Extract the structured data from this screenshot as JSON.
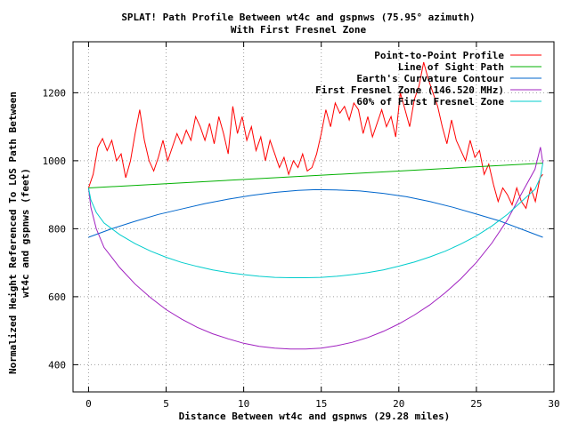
{
  "chart_data": {
    "type": "line",
    "title": "SPLAT! Path Profile Between wt4c and gspnws (75.95° azimuth)",
    "subtitle": "With First Fresnel Zone",
    "xlabel": "Distance Between wt4c and gspnws (29.28 miles)",
    "ylabel_lines": [
      "Normalized Height Referenced To LOS Path Between",
      "wt4c and gspnws (feet)"
    ],
    "xlim": [
      -1,
      30
    ],
    "ylim": [
      320,
      1350
    ],
    "xticks": [
      0,
      5,
      10,
      15,
      20,
      25,
      30
    ],
    "yticks": [
      400,
      600,
      800,
      1000,
      1200
    ],
    "grid": true,
    "legend_position": "top-right",
    "series": [
      {
        "name": "Point-to-Point Profile",
        "color": "#ff0000",
        "x": [
          0,
          0.3,
          0.6,
          0.9,
          1.2,
          1.5,
          1.8,
          2.1,
          2.4,
          2.7,
          3.0,
          3.3,
          3.6,
          3.9,
          4.2,
          4.5,
          4.8,
          5.1,
          5.4,
          5.7,
          6.0,
          6.3,
          6.6,
          6.9,
          7.2,
          7.5,
          7.8,
          8.1,
          8.4,
          8.7,
          9.0,
          9.3,
          9.6,
          9.9,
          10.2,
          10.5,
          10.8,
          11.1,
          11.4,
          11.7,
          12.0,
          12.3,
          12.6,
          12.9,
          13.2,
          13.5,
          13.8,
          14.1,
          14.4,
          14.7,
          15.0,
          15.3,
          15.6,
          15.9,
          16.2,
          16.5,
          16.8,
          17.1,
          17.4,
          17.7,
          18.0,
          18.3,
          18.6,
          18.9,
          19.2,
          19.5,
          19.8,
          20.1,
          20.4,
          20.7,
          21.0,
          21.3,
          21.6,
          21.9,
          22.2,
          22.5,
          22.8,
          23.1,
          23.4,
          23.7,
          24.0,
          24.3,
          24.6,
          24.9,
          25.2,
          25.5,
          25.8,
          26.1,
          26.4,
          26.7,
          27.0,
          27.3,
          27.6,
          27.9,
          28.2,
          28.5,
          28.8,
          29.1,
          29.28
        ],
        "y": [
          920,
          960,
          1040,
          1065,
          1030,
          1060,
          1000,
          1020,
          950,
          1000,
          1080,
          1150,
          1060,
          1000,
          970,
          1010,
          1060,
          1000,
          1040,
          1080,
          1050,
          1090,
          1060,
          1130,
          1100,
          1060,
          1110,
          1050,
          1130,
          1080,
          1020,
          1160,
          1080,
          1130,
          1060,
          1100,
          1030,
          1070,
          1000,
          1060,
          1020,
          980,
          1010,
          960,
          1000,
          980,
          1020,
          970,
          980,
          1020,
          1080,
          1150,
          1100,
          1170,
          1140,
          1160,
          1120,
          1170,
          1150,
          1080,
          1130,
          1070,
          1110,
          1150,
          1100,
          1130,
          1070,
          1200,
          1150,
          1100,
          1180,
          1220,
          1290,
          1240,
          1200,
          1160,
          1100,
          1050,
          1120,
          1060,
          1030,
          1000,
          1060,
          1010,
          1030,
          960,
          990,
          930,
          880,
          920,
          900,
          870,
          920,
          880,
          860,
          920,
          880,
          950,
          960
        ]
      },
      {
        "name": "Line of Sight Path",
        "color": "#00b000",
        "x": [
          0,
          29.28
        ],
        "y": [
          920,
          993
        ]
      },
      {
        "name": "Earth's Curvature Contour",
        "color": "#0066cc",
        "x": [
          0,
          1.5,
          3,
          4.5,
          6,
          7.5,
          9,
          10.5,
          12,
          13.5,
          14.64,
          16,
          17.5,
          19,
          20.5,
          22,
          23.5,
          25,
          26.5,
          28,
          29.28
        ],
        "y": [
          775,
          800,
          822,
          842,
          858,
          874,
          887,
          898,
          907,
          913,
          915,
          914,
          911,
          904,
          894,
          880,
          863,
          843,
          823,
          797,
          775
        ]
      },
      {
        "name": "First Fresnel Zone (146.520 MHz)",
        "color": "#a020c0",
        "x": [
          0,
          0.15,
          0.5,
          1,
          2,
          3,
          4,
          5,
          6,
          7,
          8,
          9,
          10,
          11,
          12,
          13,
          14,
          15,
          16,
          17,
          18,
          19,
          20,
          21,
          22,
          23,
          24,
          25,
          26,
          27,
          28,
          28.78,
          29.13,
          29.28
        ],
        "y": [
          920,
          863,
          800,
          745,
          686,
          637,
          597,
          562,
          534,
          510,
          491,
          476,
          463,
          454,
          449,
          446,
          446,
          449,
          456,
          466,
          480,
          498,
          520,
          546,
          576,
          612,
          653,
          701,
          758,
          826,
          911,
          975,
          1040,
          993
        ]
      },
      {
        "name": "60% of First Fresnel Zone",
        "color": "#00cccc",
        "x": [
          0,
          0.15,
          0.5,
          1,
          2,
          3,
          4,
          5,
          6,
          7,
          8,
          9,
          10,
          11,
          12,
          13,
          14,
          15,
          16,
          17,
          18,
          19,
          20,
          21,
          22,
          23,
          24,
          25,
          26,
          27,
          28,
          28.78,
          29.13,
          29.28
        ],
        "y": [
          920,
          885,
          848,
          817,
          783,
          756,
          734,
          716,
          701,
          689,
          679,
          671,
          665,
          660,
          657,
          656,
          656,
          657,
          660,
          665,
          671,
          679,
          690,
          702,
          717,
          734,
          755,
          779,
          808,
          842,
          884,
          916,
          951,
          993
        ]
      }
    ]
  }
}
